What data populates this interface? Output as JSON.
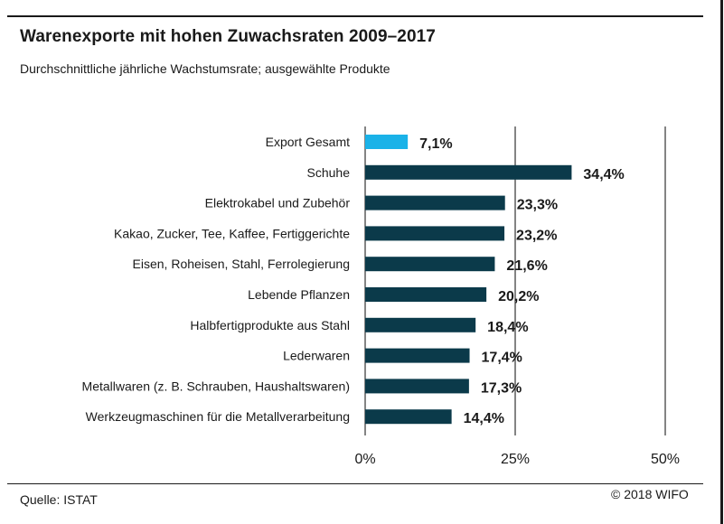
{
  "header": {
    "title": "Warenexporte mit hohen Zuwachsraten 2009–2017",
    "subtitle": "Durchschnittliche jährliche Wachstumsrate; ausgewählte Produkte"
  },
  "footer": {
    "source": "Quelle: ISTAT",
    "credit": "© 2018 WIFO"
  },
  "colors": {
    "highlight": "#1ab2e8",
    "bar": "#0b3a4a",
    "gridline": "#333333"
  },
  "chart_data": {
    "type": "bar",
    "orientation": "horizontal",
    "categories": [
      "Export Gesamt",
      "Schuhe",
      "Elektrokabel und Zubehör",
      "Kakao, Zucker, Tee, Kaffee, Fertiggerichte",
      "Eisen, Roheisen, Stahl, Ferrolegierung",
      "Lebende Pflanzen",
      "Halbfertigprodukte aus Stahl",
      "Lederwaren",
      "Metallwaren (z. B. Schrauben, Haushaltswaren)",
      "Werkzeugmaschinen für die Metallverarbeitung"
    ],
    "values": [
      7.1,
      34.4,
      23.3,
      23.2,
      21.6,
      20.2,
      18.4,
      17.4,
      17.3,
      14.4
    ],
    "value_labels": [
      "7,1%",
      "34,4%",
      "23,3%",
      "23,2%",
      "21,6%",
      "20,2%",
      "18,4%",
      "17,4%",
      "17,3%",
      "14,4%"
    ],
    "highlighted": [
      true,
      false,
      false,
      false,
      false,
      false,
      false,
      false,
      false,
      false
    ],
    "xlim": [
      0,
      50
    ],
    "xticks": [
      0,
      25,
      50
    ],
    "xtick_labels": [
      "0%",
      "25%",
      "50%"
    ],
    "grid": true
  }
}
